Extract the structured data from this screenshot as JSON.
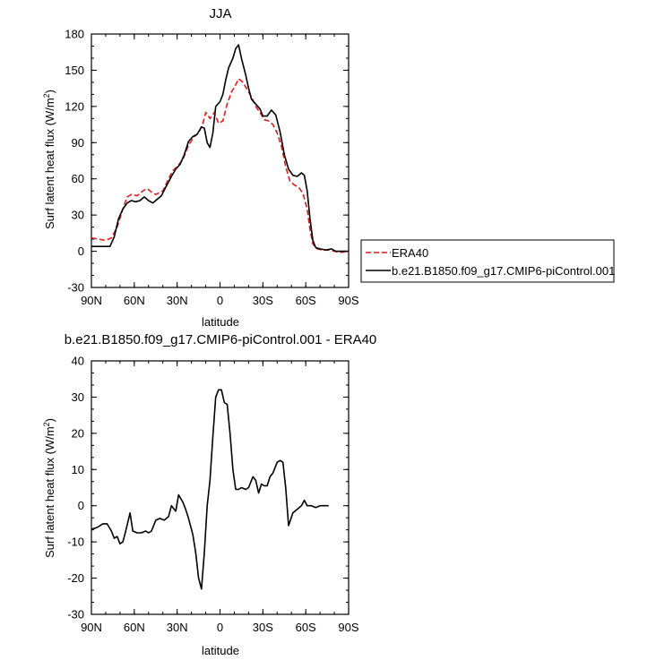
{
  "chart_data": [
    {
      "type": "line",
      "title": "JJA",
      "xlabel": "latitude",
      "ylabel": "Surf latent heat flux (W/m",
      "ylabel_sup": "2",
      "ylabel_close": ")",
      "xlim": [
        -90,
        90
      ],
      "ylim": [
        -30,
        180
      ],
      "yticks": [
        -30,
        0,
        30,
        60,
        90,
        120,
        150,
        180
      ],
      "xticks": [
        {
          "v": -90,
          "label": "90N"
        },
        {
          "v": -60,
          "label": "60N"
        },
        {
          "v": -30,
          "label": "30N"
        },
        {
          "v": 0,
          "label": "0"
        },
        {
          "v": 30,
          "label": "30S"
        },
        {
          "v": 60,
          "label": "60S"
        },
        {
          "v": 90,
          "label": "90S"
        }
      ],
      "legend_position": "right-of-plot",
      "series": [
        {
          "name": "ERA40",
          "color": "#e31a1c",
          "style": "dashed",
          "points": [
            [
              -90,
              11
            ],
            [
              -85,
              10
            ],
            [
              -80,
              9
            ],
            [
              -76,
              11
            ],
            [
              -72,
              20
            ],
            [
              -68,
              35
            ],
            [
              -65,
              45
            ],
            [
              -62,
              47
            ],
            [
              -58,
              46
            ],
            [
              -54,
              50
            ],
            [
              -51,
              52
            ],
            [
              -48,
              49
            ],
            [
              -45,
              47
            ],
            [
              -40,
              50
            ],
            [
              -36,
              60
            ],
            [
              -33,
              67
            ],
            [
              -30,
              70
            ],
            [
              -26,
              76
            ],
            [
              -22,
              88
            ],
            [
              -18,
              95
            ],
            [
              -15,
              98
            ],
            [
              -12,
              106
            ],
            [
              -10,
              115
            ],
            [
              -7,
              110
            ],
            [
              -4,
              115
            ],
            [
              -1,
              106
            ],
            [
              2,
              108
            ],
            [
              5,
              122
            ],
            [
              8,
              132
            ],
            [
              11,
              138
            ],
            [
              13,
              143
            ],
            [
              16,
              140
            ],
            [
              19,
              134
            ],
            [
              22,
              128
            ],
            [
              25,
              120
            ],
            [
              28,
              115
            ],
            [
              31,
              109
            ],
            [
              34,
              108
            ],
            [
              37,
              105
            ],
            [
              40,
              98
            ],
            [
              43,
              87
            ],
            [
              46,
              70
            ],
            [
              49,
              58
            ],
            [
              52,
              55
            ],
            [
              55,
              53
            ],
            [
              58,
              48
            ],
            [
              61,
              35
            ],
            [
              63,
              18
            ],
            [
              65,
              6
            ],
            [
              68,
              2
            ],
            [
              72,
              1
            ],
            [
              76,
              1
            ],
            [
              80,
              0
            ],
            [
              84,
              -1
            ],
            [
              90,
              0
            ]
          ]
        },
        {
          "name": "b.e21.B1850.f09_g17.CMIP6-piControl.001",
          "color": "#000000",
          "style": "solid",
          "points": [
            [
              -90,
              4
            ],
            [
              -85,
              4
            ],
            [
              -81,
              4
            ],
            [
              -77,
              4
            ],
            [
              -74,
              12
            ],
            [
              -71,
              27
            ],
            [
              -68,
              35
            ],
            [
              -65,
              40
            ],
            [
              -62,
              42
            ],
            [
              -59,
              41
            ],
            [
              -56,
              42
            ],
            [
              -53,
              45
            ],
            [
              -50,
              42
            ],
            [
              -47,
              40
            ],
            [
              -44,
              43
            ],
            [
              -41,
              46
            ],
            [
              -38,
              53
            ],
            [
              -34,
              62
            ],
            [
              -31,
              68
            ],
            [
              -28,
              72
            ],
            [
              -25,
              80
            ],
            [
              -22,
              91
            ],
            [
              -19,
              95
            ],
            [
              -16,
              97
            ],
            [
              -13,
              103
            ],
            [
              -11,
              102
            ],
            [
              -9,
              90
            ],
            [
              -7,
              86
            ],
            [
              -5,
              98
            ],
            [
              -3,
              120
            ],
            [
              0,
              124
            ],
            [
              2,
              130
            ],
            [
              4,
              142
            ],
            [
              6,
              152
            ],
            [
              9,
              160
            ],
            [
              11,
              168
            ],
            [
              13,
              171
            ],
            [
              15,
              160
            ],
            [
              18,
              146
            ],
            [
              20,
              135
            ],
            [
              22,
              126
            ],
            [
              25,
              122
            ],
            [
              28,
              118
            ],
            [
              30,
              112
            ],
            [
              33,
              112
            ],
            [
              36,
              117
            ],
            [
              39,
              113
            ],
            [
              42,
              99
            ],
            [
              45,
              80
            ],
            [
              48,
              68
            ],
            [
              51,
              63
            ],
            [
              54,
              62
            ],
            [
              57,
              65
            ],
            [
              59,
              63
            ],
            [
              61,
              50
            ],
            [
              63,
              27
            ],
            [
              65,
              9
            ],
            [
              67,
              3
            ],
            [
              70,
              2
            ],
            [
              74,
              1
            ],
            [
              78,
              2
            ],
            [
              81,
              0
            ],
            [
              85,
              0
            ],
            [
              90,
              0
            ]
          ]
        }
      ]
    },
    {
      "type": "line",
      "title": "b.e21.B1850.f09_g17.CMIP6-piControl.001 - ERA40",
      "xlabel": "latitude",
      "ylabel": "Surf latent heat flux (W/m",
      "ylabel_sup": "2",
      "ylabel_close": ")",
      "xlim": [
        -90,
        90
      ],
      "ylim": [
        -30,
        40
      ],
      "yticks": [
        -30,
        -20,
        -10,
        0,
        10,
        20,
        30,
        40
      ],
      "xticks": [
        {
          "v": -90,
          "label": "90N"
        },
        {
          "v": -60,
          "label": "60N"
        },
        {
          "v": -30,
          "label": "30N"
        },
        {
          "v": 0,
          "label": "0"
        },
        {
          "v": 30,
          "label": "30S"
        },
        {
          "v": 60,
          "label": "60S"
        },
        {
          "v": 90,
          "label": "90S"
        }
      ],
      "series": [
        {
          "color": "#000000",
          "style": "solid",
          "points": [
            [
              -90,
              -6.5
            ],
            [
              -86,
              -6
            ],
            [
              -82,
              -5
            ],
            [
              -79,
              -5
            ],
            [
              -76,
              -7
            ],
            [
              -74,
              -9
            ],
            [
              -72,
              -8.5
            ],
            [
              -70,
              -10.5
            ],
            [
              -68,
              -10
            ],
            [
              -66,
              -7
            ],
            [
              -63,
              -2
            ],
            [
              -61,
              -7
            ],
            [
              -58,
              -7.5
            ],
            [
              -55,
              -7.5
            ],
            [
              -52,
              -7
            ],
            [
              -50,
              -7.5
            ],
            [
              -48,
              -7
            ],
            [
              -45,
              -4
            ],
            [
              -42,
              -3.5
            ],
            [
              -39,
              -4
            ],
            [
              -36,
              -3
            ],
            [
              -34,
              0
            ],
            [
              -31,
              -1.5
            ],
            [
              -29,
              3
            ],
            [
              -26,
              1
            ],
            [
              -24,
              -1
            ],
            [
              -22,
              -3.5
            ],
            [
              -19,
              -8
            ],
            [
              -17,
              -13
            ],
            [
              -15,
              -20
            ],
            [
              -13,
              -23
            ],
            [
              -11,
              -13
            ],
            [
              -9,
              0
            ],
            [
              -7,
              7
            ],
            [
              -5,
              19
            ],
            [
              -3,
              30
            ],
            [
              -1,
              32
            ],
            [
              1,
              32
            ],
            [
              3,
              28.5
            ],
            [
              5,
              28
            ],
            [
              7,
              20
            ],
            [
              9,
              10
            ],
            [
              11,
              4.5
            ],
            [
              13,
              4.5
            ],
            [
              15,
              5
            ],
            [
              18,
              4.5
            ],
            [
              20,
              5
            ],
            [
              23,
              8
            ],
            [
              25,
              7
            ],
            [
              27,
              3.5
            ],
            [
              29,
              6
            ],
            [
              31,
              5.5
            ],
            [
              33,
              5.5
            ],
            [
              35,
              8
            ],
            [
              37,
              9
            ],
            [
              40,
              12
            ],
            [
              42,
              12.5
            ],
            [
              44,
              12
            ],
            [
              46,
              5
            ],
            [
              48,
              -5.5
            ],
            [
              51,
              -2
            ],
            [
              54,
              -1
            ],
            [
              57,
              0
            ],
            [
              59,
              1.5
            ],
            [
              61,
              0
            ],
            [
              64,
              0
            ],
            [
              67,
              -0.5
            ],
            [
              70,
              0
            ],
            [
              73,
              0
            ],
            [
              76,
              0
            ]
          ]
        }
      ]
    }
  ]
}
